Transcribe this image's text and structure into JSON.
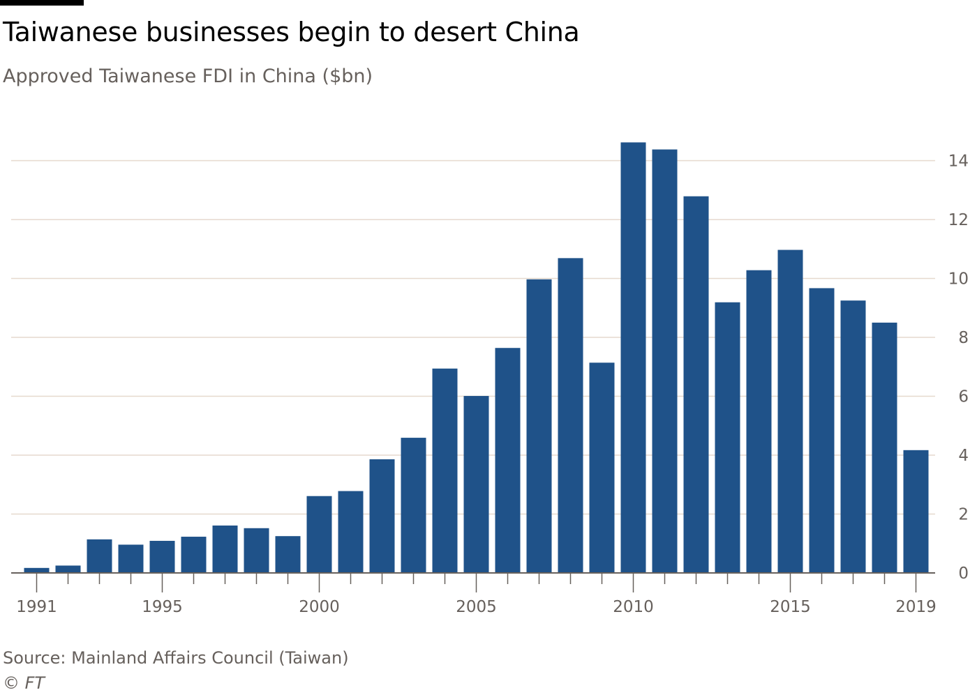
{
  "header": {
    "title": "Taiwanese businesses begin to desert China",
    "subtitle": "Approved Taiwanese FDI in China ($bn)"
  },
  "footer": {
    "source": "Source: Mainland Affairs Council (Taiwan)",
    "credit": "© FT"
  },
  "colors": {
    "bar": "#1f5289",
    "grid": "#e6d9ce",
    "axis": "#66605c",
    "accent": "#000000"
  },
  "chart_data": {
    "type": "bar",
    "title": "Taiwanese businesses begin to desert China",
    "subtitle": "Approved Taiwanese FDI in China ($bn)",
    "xlabel": "",
    "ylabel": "",
    "categories": [
      1991,
      1992,
      1993,
      1994,
      1995,
      1996,
      1997,
      1998,
      1999,
      2000,
      2001,
      2002,
      2003,
      2004,
      2005,
      2006,
      2007,
      2008,
      2009,
      2010,
      2011,
      2012,
      2013,
      2014,
      2015,
      2016,
      2017,
      2018,
      2019
    ],
    "values": [
      0.17,
      0.25,
      1.14,
      0.96,
      1.09,
      1.23,
      1.61,
      1.52,
      1.25,
      2.61,
      2.78,
      3.86,
      4.59,
      6.94,
      6.01,
      7.64,
      9.97,
      10.69,
      7.14,
      14.62,
      14.38,
      12.79,
      9.19,
      10.28,
      10.97,
      9.67,
      9.25,
      8.5,
      4.17
    ],
    "x_tick_labels": [
      "1991",
      "1995",
      "2000",
      "2005",
      "2010",
      "2015",
      "2019"
    ],
    "y_ticks": [
      0,
      2,
      4,
      6,
      8,
      10,
      12,
      14
    ],
    "ylim": [
      0,
      15
    ],
    "grid": true,
    "y_axis_side": "right",
    "legend": "none"
  }
}
